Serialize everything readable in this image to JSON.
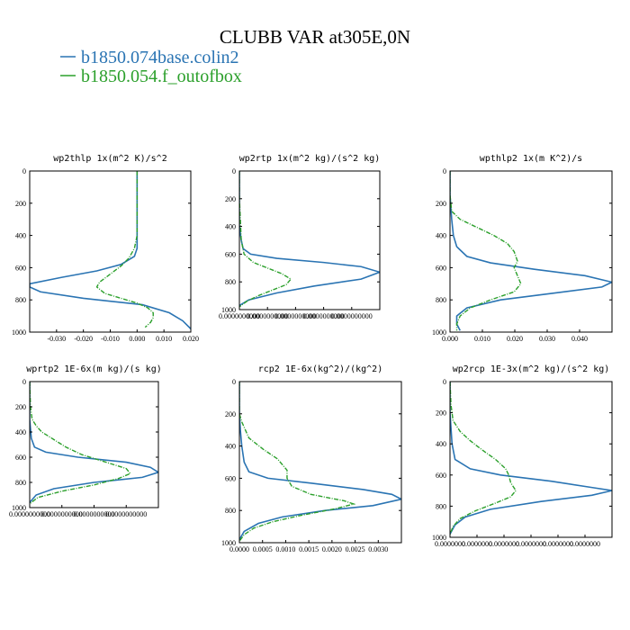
{
  "figure": {
    "title": "CLUBB VAR at305E,0N",
    "legend": [
      {
        "name": "b1850.074base.colin2",
        "color": "#2a74b3"
      },
      {
        "name": "b1850.054.f_outofbox",
        "color": "#2ca02c"
      }
    ]
  },
  "chart_data": [
    {
      "type": "line",
      "title": "wp2thlp  1x(m^2 K)/s^2",
      "xlim": [
        -0.04,
        0.02
      ],
      "ylim": [
        1000,
        0
      ],
      "xticks": [
        "-0.030",
        "-0.020",
        "-0.010",
        "0.000",
        "0.010",
        "0.020"
      ],
      "yticks": [
        "0",
        "200",
        "400",
        "600",
        "800",
        "1000"
      ],
      "series": [
        {
          "name": "b1850.074base.colin2",
          "points": [
            [
              0.0,
              0
            ],
            [
              0.0,
              100
            ],
            [
              0.0,
              200
            ],
            [
              0.0,
              300
            ],
            [
              0.0,
              400
            ],
            [
              0.0,
              480
            ],
            [
              -0.001,
              530
            ],
            [
              -0.006,
              580
            ],
            [
              -0.015,
              620
            ],
            [
              -0.028,
              660
            ],
            [
              -0.04,
              700
            ],
            [
              -0.04,
              720
            ],
            [
              -0.036,
              750
            ],
            [
              -0.02,
              790
            ],
            [
              0.002,
              830
            ],
            [
              0.012,
              880
            ],
            [
              0.017,
              930
            ],
            [
              0.02,
              980
            ]
          ]
        },
        {
          "name": "b1850.054.f_outofbox",
          "points": [
            [
              0.0,
              0
            ],
            [
              0.0,
              100
            ],
            [
              0.0,
              200
            ],
            [
              0.0,
              300
            ],
            [
              0.0,
              400
            ],
            [
              -0.001,
              480
            ],
            [
              -0.003,
              540
            ],
            [
              -0.006,
              590
            ],
            [
              -0.01,
              640
            ],
            [
              -0.014,
              690
            ],
            [
              -0.015,
              720
            ],
            [
              -0.012,
              760
            ],
            [
              -0.006,
              790
            ],
            [
              0.0,
              820
            ],
            [
              0.004,
              850
            ],
            [
              0.006,
              880
            ],
            [
              0.006,
              910
            ],
            [
              0.005,
              940
            ],
            [
              0.003,
              970
            ]
          ]
        }
      ]
    },
    {
      "type": "line",
      "title": "wp2rtp  1x(m^2 kg)/(s^2 kg)",
      "xlim": [
        0.0,
        1.5e-06
      ],
      "ylim": [
        1000,
        0
      ],
      "xticks": [
        "0.0000000000",
        "0.0000000000",
        "0.0000000000",
        "0.0000000000",
        "0.0000000000"
      ],
      "yticks": [
        "0",
        "200",
        "400",
        "600",
        "800",
        "1000"
      ],
      "series": [
        {
          "name": "b1850.074base.colin2",
          "points": [
            [
              0.0,
              0
            ],
            [
              0.0,
              200
            ],
            [
              0.0,
              400
            ],
            [
              2e-08,
              500
            ],
            [
              4e-08,
              560
            ],
            [
              1.2e-07,
              600
            ],
            [
              4e-07,
              630
            ],
            [
              9e-07,
              660
            ],
            [
              1.3e-06,
              690
            ],
            [
              1.5e-06,
              730
            ],
            [
              1.3e-06,
              780
            ],
            [
              8e-07,
              830
            ],
            [
              4e-07,
              880
            ],
            [
              1e-07,
              930
            ],
            [
              0.0,
              970
            ]
          ]
        },
        {
          "name": "b1850.054.f_outofbox",
          "points": [
            [
              0.0,
              0
            ],
            [
              0.0,
              200
            ],
            [
              1e-08,
              350
            ],
            [
              2e-08,
              500
            ],
            [
              5e-08,
              600
            ],
            [
              1.5e-07,
              660
            ],
            [
              3e-07,
              700
            ],
            [
              4.5e-07,
              740
            ],
            [
              5.5e-07,
              780
            ],
            [
              5e-07,
              820
            ],
            [
              3.5e-07,
              860
            ],
            [
              2e-07,
              900
            ],
            [
              8e-08,
              940
            ],
            [
              0.0,
              980
            ]
          ]
        }
      ]
    },
    {
      "type": "line",
      "title": "wpthlp2  1x(m K^2)/s",
      "xlim": [
        0.0,
        0.048
      ],
      "ylim": [
        1000,
        0
      ],
      "xticks": [
        "0.000",
        "0.010",
        "0.020",
        "0.030",
        "0.040"
      ],
      "yticks": [
        "0",
        "200",
        "400",
        "600",
        "800",
        "1000"
      ],
      "series": [
        {
          "name": "b1850.074base.colin2",
          "points": [
            [
              0.0,
              0
            ],
            [
              0.0,
              150
            ],
            [
              0.0005,
              300
            ],
            [
              0.001,
              400
            ],
            [
              0.002,
              470
            ],
            [
              0.005,
              530
            ],
            [
              0.012,
              570
            ],
            [
              0.025,
              610
            ],
            [
              0.04,
              650
            ],
            [
              0.048,
              690
            ],
            [
              0.045,
              720
            ],
            [
              0.03,
              760
            ],
            [
              0.015,
              800
            ],
            [
              0.005,
              850
            ],
            [
              0.002,
              900
            ],
            [
              0.002,
              950
            ],
            [
              0.003,
              990
            ]
          ]
        },
        {
          "name": "b1850.054.f_outofbox",
          "points": [
            [
              0.0,
              0
            ],
            [
              0.0,
              150
            ],
            [
              0.0005,
              250
            ],
            [
              0.003,
              300
            ],
            [
              0.008,
              350
            ],
            [
              0.013,
              400
            ],
            [
              0.017,
              450
            ],
            [
              0.019,
              500
            ],
            [
              0.02,
              560
            ],
            [
              0.019,
              600
            ],
            [
              0.02,
              650
            ],
            [
              0.021,
              700
            ],
            [
              0.019,
              750
            ],
            [
              0.012,
              800
            ],
            [
              0.006,
              850
            ],
            [
              0.003,
              900
            ],
            [
              0.002,
              950
            ],
            [
              0.002,
              990
            ]
          ]
        }
      ]
    },
    {
      "type": "line",
      "title": "wprtp2  1E-6x(m kg)/(s kg)",
      "xlim": [
        0.0,
        1.6e-06
      ],
      "ylim": [
        1000,
        0
      ],
      "xticks": [
        "0.0000000000",
        "0.0000000000",
        "0.0000000000",
        "0.0000000000"
      ],
      "yticks": [
        "0",
        "200",
        "400",
        "600",
        "800",
        "1000"
      ],
      "series": [
        {
          "name": "b1850.074base.colin2",
          "points": [
            [
              0.0,
              0
            ],
            [
              0.0,
              300
            ],
            [
              2e-08,
              450
            ],
            [
              6e-08,
              520
            ],
            [
              2e-07,
              560
            ],
            [
              6e-07,
              600
            ],
            [
              1.2e-06,
              640
            ],
            [
              1.5e-06,
              680
            ],
            [
              1.6e-06,
              720
            ],
            [
              1.4e-06,
              760
            ],
            [
              8e-07,
              800
            ],
            [
              3e-07,
              850
            ],
            [
              8e-08,
              900
            ],
            [
              0.0,
              960
            ]
          ]
        },
        {
          "name": "b1850.054.f_outofbox",
          "points": [
            [
              0.0,
              0
            ],
            [
              1e-08,
              200
            ],
            [
              3e-08,
              300
            ],
            [
              8e-08,
              350
            ],
            [
              1.5e-07,
              400
            ],
            [
              3e-07,
              460
            ],
            [
              4.5e-07,
              520
            ],
            [
              6.5e-07,
              580
            ],
            [
              9.5e-07,
              640
            ],
            [
              1.2e-06,
              690
            ],
            [
              1.25e-06,
              730
            ],
            [
              1.1e-06,
              770
            ],
            [
              8e-07,
              820
            ],
            [
              4e-07,
              870
            ],
            [
              1e-07,
              920
            ],
            [
              0.0,
              970
            ]
          ]
        }
      ]
    },
    {
      "type": "line",
      "title": "rcp2  1E-6x(kg^2)/(kg^2)",
      "xlim": [
        0.0,
        0.0034
      ],
      "ylim": [
        1000,
        0
      ],
      "xticks": [
        "0.0000",
        "0.0005",
        "0.0010",
        "0.0015",
        "0.0020",
        "0.0025",
        "0.0030"
      ],
      "yticks": [
        "0",
        "200",
        "400",
        "600",
        "800",
        "1000"
      ],
      "series": [
        {
          "name": "b1850.074base.colin2",
          "points": [
            [
              0.0,
              0
            ],
            [
              0.0,
              200
            ],
            [
              2e-05,
              300
            ],
            [
              5e-05,
              400
            ],
            [
              0.0001,
              500
            ],
            [
              0.0002,
              560
            ],
            [
              0.0006,
              600
            ],
            [
              0.0015,
              630
            ],
            [
              0.0026,
              670
            ],
            [
              0.0032,
              700
            ],
            [
              0.0034,
              730
            ],
            [
              0.0028,
              770
            ],
            [
              0.0018,
              800
            ],
            [
              0.0009,
              840
            ],
            [
              0.0004,
              880
            ],
            [
              0.0001,
              930
            ],
            [
              0.0,
              980
            ]
          ]
        },
        {
          "name": "b1850.054.f_outofbox",
          "points": [
            [
              0.0,
              0
            ],
            [
              0.0,
              200
            ],
            [
              5e-05,
              250
            ],
            [
              0.0002,
              350
            ],
            [
              0.0005,
              420
            ],
            [
              0.0008,
              480
            ],
            [
              0.001,
              550
            ],
            [
              0.001,
              600
            ],
            [
              0.0011,
              650
            ],
            [
              0.0015,
              700
            ],
            [
              0.0022,
              740
            ],
            [
              0.0024,
              760
            ],
            [
              0.002,
              790
            ],
            [
              0.0013,
              830
            ],
            [
              0.0007,
              870
            ],
            [
              0.0003,
              910
            ],
            [
              0.0001,
              950
            ],
            [
              0.0,
              990
            ]
          ]
        }
      ]
    },
    {
      "type": "line",
      "title": "wp2rcp  1E-3x(m^2 kg)/(s^2 kg)",
      "xlim": [
        0.0,
        1.6e-06
      ],
      "ylim": [
        1000,
        0
      ],
      "xticks": [
        "0.0000000",
        "0.0000000",
        "0.0000000",
        "0.0000000",
        "0.0000000",
        "0.0000000"
      ],
      "yticks": [
        "0",
        "200",
        "400",
        "600",
        "800",
        "1000"
      ],
      "series": [
        {
          "name": "b1850.074base.colin2",
          "points": [
            [
              0.0,
              0
            ],
            [
              0.0,
              200
            ],
            [
              2e-08,
              400
            ],
            [
              5e-08,
              500
            ],
            [
              2e-07,
              560
            ],
            [
              5e-07,
              600
            ],
            [
              1e-06,
              640
            ],
            [
              1.4e-06,
              680
            ],
            [
              1.6e-06,
              700
            ],
            [
              1.4e-06,
              730
            ],
            [
              9e-07,
              770
            ],
            [
              4e-07,
              820
            ],
            [
              1.5e-07,
              870
            ],
            [
              5e-08,
              920
            ],
            [
              0.0,
              980
            ]
          ]
        },
        {
          "name": "b1850.054.f_outofbox",
          "points": [
            [
              0.0,
              0
            ],
            [
              1e-08,
              150
            ],
            [
              3e-08,
              250
            ],
            [
              1e-07,
              320
            ],
            [
              2e-07,
              380
            ],
            [
              3.2e-07,
              440
            ],
            [
              4.5e-07,
              500
            ],
            [
              5.5e-07,
              560
            ],
            [
              5.8e-07,
              600
            ],
            [
              6e-07,
              650
            ],
            [
              6.5e-07,
              700
            ],
            [
              6e-07,
              740
            ],
            [
              4.5e-07,
              780
            ],
            [
              2.5e-07,
              830
            ],
            [
              1e-07,
              880
            ],
            [
              3e-08,
              930
            ],
            [
              0.0,
              980
            ]
          ]
        }
      ]
    }
  ]
}
